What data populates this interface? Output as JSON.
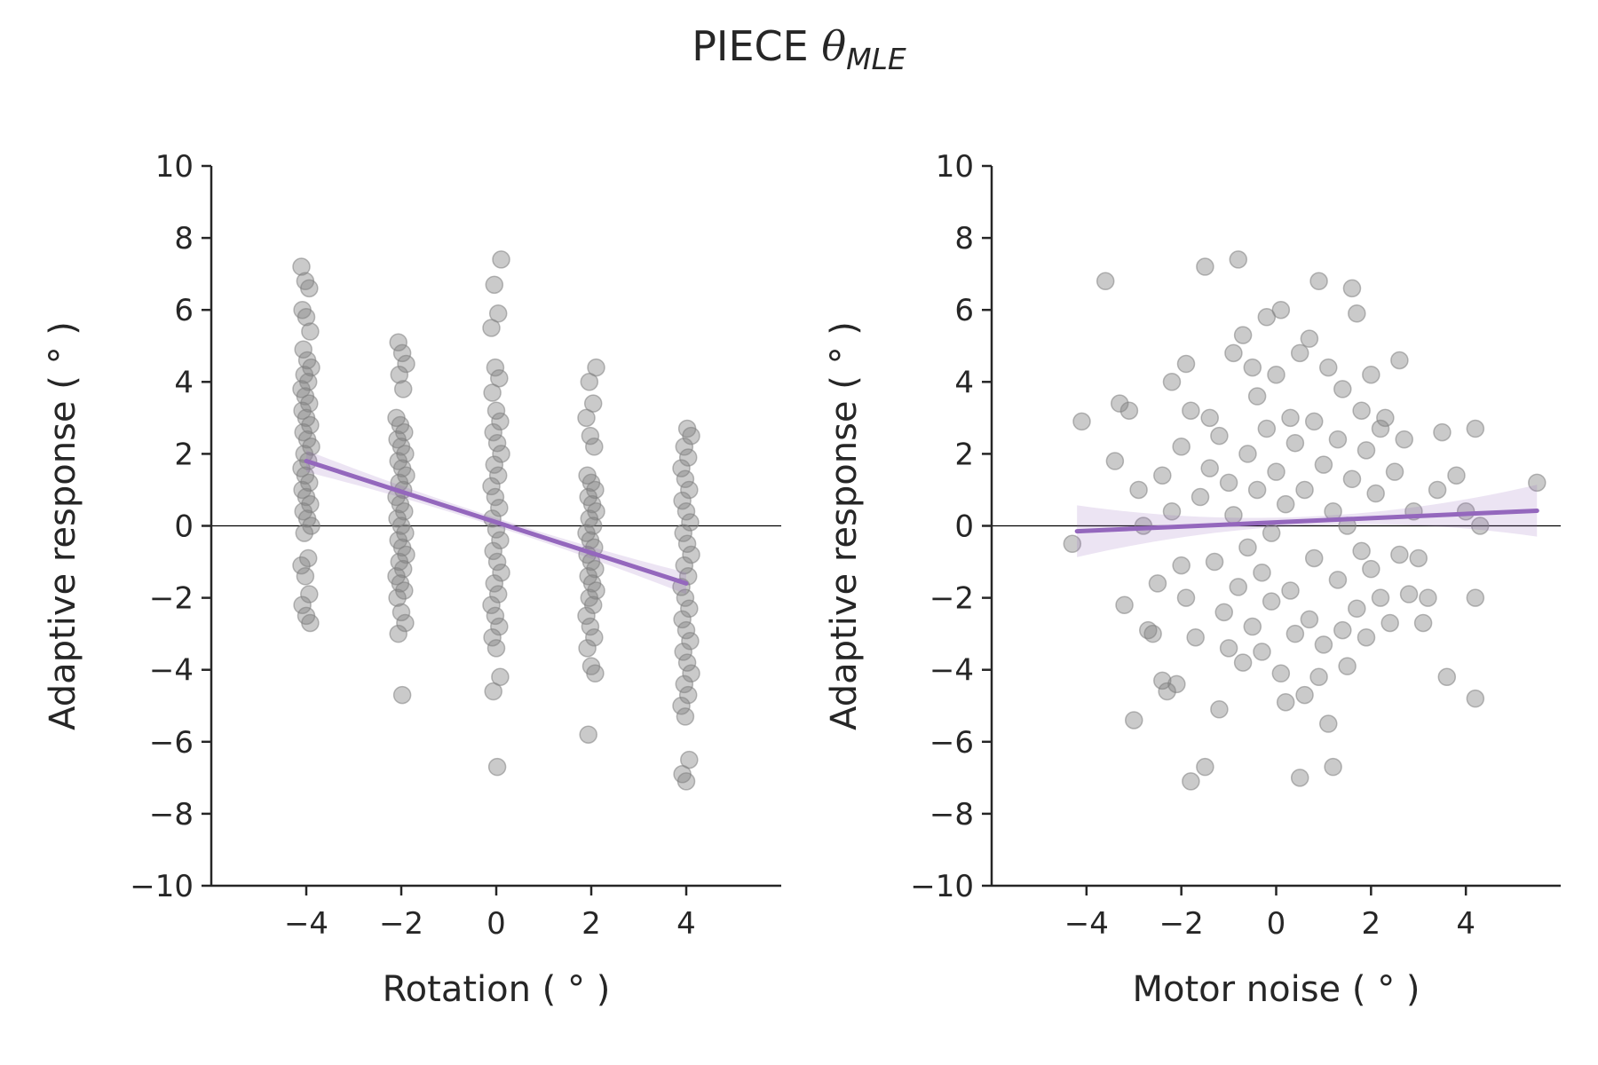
{
  "figure": {
    "title_text": "PIECE ",
    "title_symbol": "θ",
    "title_subscript": "MLE"
  },
  "colors": {
    "points": "#808080",
    "fit": "#9467bd",
    "axis": "#262626"
  },
  "chart_data": [
    {
      "type": "scatter",
      "xlabel": "Rotation ( ° )",
      "ylabel": "Adaptive response ( ° )",
      "xlim": [
        -6,
        6
      ],
      "ylim": [
        -10,
        10
      ],
      "xticks": [
        "−4",
        "−2",
        "0",
        "2",
        "4"
      ],
      "yticks": [
        "10",
        "8",
        "6",
        "4",
        "2",
        "0",
        "−2",
        "−4",
        "−6",
        "−8",
        "−10"
      ],
      "reference_line_y": 0,
      "grid": false,
      "regression": {
        "x": [
          -4,
          4
        ],
        "y": [
          1.8,
          -1.6
        ]
      },
      "series": [
        {
          "x": -4,
          "y": [
            7.2,
            6.8,
            6.6,
            6.0,
            5.8,
            5.4,
            4.9,
            4.6,
            4.4,
            4.2,
            4.0,
            3.8,
            3.6,
            3.4,
            3.2,
            3.0,
            2.8,
            2.6,
            2.4,
            2.2,
            2.0,
            1.8,
            1.6,
            1.4,
            1.2,
            1.0,
            0.8,
            0.6,
            0.4,
            0.2,
            0.0,
            -0.2,
            -0.9,
            -1.1,
            -1.4,
            -1.9,
            -2.2,
            -2.5,
            -2.7
          ]
        },
        {
          "x": -2,
          "y": [
            5.1,
            4.8,
            4.5,
            4.2,
            3.8,
            3.0,
            2.8,
            2.6,
            2.4,
            2.2,
            2.0,
            1.8,
            1.6,
            1.4,
            1.2,
            1.0,
            0.8,
            0.6,
            0.4,
            0.2,
            0.0,
            -0.2,
            -0.4,
            -0.6,
            -0.8,
            -1.0,
            -1.2,
            -1.4,
            -1.6,
            -1.8,
            -2.0,
            -2.4,
            -2.7,
            -3.0,
            -4.7
          ]
        },
        {
          "x": 0,
          "y": [
            7.4,
            6.7,
            5.9,
            5.5,
            4.4,
            4.1,
            3.7,
            3.2,
            2.9,
            2.6,
            2.3,
            2.0,
            1.7,
            1.4,
            1.1,
            0.8,
            0.5,
            0.2,
            -0.1,
            -0.4,
            -0.7,
            -1.0,
            -1.3,
            -1.6,
            -1.9,
            -2.2,
            -2.5,
            -2.8,
            -3.1,
            -3.4,
            -4.2,
            -4.6,
            -6.7
          ]
        },
        {
          "x": 2,
          "y": [
            4.4,
            4.0,
            3.4,
            3.0,
            2.5,
            2.2,
            1.4,
            1.2,
            1.0,
            0.8,
            0.6,
            0.4,
            0.2,
            0.0,
            -0.2,
            -0.4,
            -0.6,
            -0.8,
            -1.0,
            -1.2,
            -1.4,
            -1.6,
            -1.8,
            -2.0,
            -2.2,
            -2.5,
            -2.8,
            -3.1,
            -3.4,
            -3.9,
            -4.1,
            -5.8
          ]
        },
        {
          "x": 4,
          "y": [
            2.7,
            2.5,
            2.2,
            1.9,
            1.6,
            1.3,
            1.0,
            0.7,
            0.4,
            0.1,
            -0.2,
            -0.5,
            -0.8,
            -1.1,
            -1.4,
            -1.7,
            -2.0,
            -2.3,
            -2.6,
            -2.9,
            -3.2,
            -3.5,
            -3.8,
            -4.1,
            -4.4,
            -4.7,
            -5.0,
            -5.3,
            -6.5,
            -6.9,
            -7.1
          ]
        }
      ]
    },
    {
      "type": "scatter",
      "xlabel": "Motor noise ( ° )",
      "ylabel": "Adaptive response ( ° )",
      "xlim": [
        -6,
        6
      ],
      "ylim": [
        -10,
        10
      ],
      "xticks": [
        "−4",
        "−2",
        "0",
        "2",
        "4"
      ],
      "yticks": [
        "10",
        "8",
        "6",
        "4",
        "2",
        "0",
        "−2",
        "−4",
        "−6",
        "−8",
        "−10"
      ],
      "reference_line_y": 0,
      "grid": false,
      "regression": {
        "x": [
          -4.2,
          5.5
        ],
        "y": [
          -0.15,
          0.42
        ]
      },
      "points": [
        [
          -4.3,
          -0.5
        ],
        [
          -4.1,
          2.9
        ],
        [
          -3.6,
          6.8
        ],
        [
          -3.4,
          1.8
        ],
        [
          -3.3,
          3.4
        ],
        [
          -3.2,
          -2.2
        ],
        [
          -3.1,
          3.2
        ],
        [
          -3.0,
          -5.4
        ],
        [
          -2.9,
          1.0
        ],
        [
          -2.8,
          0.0
        ],
        [
          -2.7,
          -2.9
        ],
        [
          -2.6,
          -3.0
        ],
        [
          -2.5,
          -1.6
        ],
        [
          -2.4,
          -4.3
        ],
        [
          -2.4,
          1.4
        ],
        [
          -2.3,
          -4.6
        ],
        [
          -2.2,
          4.0
        ],
        [
          -2.2,
          0.4
        ],
        [
          -2.1,
          -4.4
        ],
        [
          -2.0,
          2.2
        ],
        [
          -2.0,
          -1.1
        ],
        [
          -1.9,
          4.5
        ],
        [
          -1.9,
          -2.0
        ],
        [
          -1.8,
          -7.1
        ],
        [
          -1.8,
          3.2
        ],
        [
          -1.7,
          -3.1
        ],
        [
          -1.6,
          0.8
        ],
        [
          -1.5,
          7.2
        ],
        [
          -1.5,
          -6.7
        ],
        [
          -1.4,
          3.0
        ],
        [
          -1.4,
          1.6
        ],
        [
          -1.3,
          -1.0
        ],
        [
          -1.2,
          -5.1
        ],
        [
          -1.2,
          2.5
        ],
        [
          -1.1,
          -2.4
        ],
        [
          -1.0,
          1.2
        ],
        [
          -1.0,
          -3.4
        ],
        [
          -0.9,
          4.8
        ],
        [
          -0.9,
          0.3
        ],
        [
          -0.8,
          7.4
        ],
        [
          -0.8,
          -1.7
        ],
        [
          -0.7,
          5.3
        ],
        [
          -0.7,
          -3.8
        ],
        [
          -0.6,
          2.0
        ],
        [
          -0.6,
          -0.6
        ],
        [
          -0.5,
          4.4
        ],
        [
          -0.5,
          -2.8
        ],
        [
          -0.4,
          3.6
        ],
        [
          -0.4,
          1.0
        ],
        [
          -0.3,
          -1.3
        ],
        [
          -0.3,
          -3.5
        ],
        [
          -0.2,
          5.8
        ],
        [
          -0.2,
          2.7
        ],
        [
          -0.1,
          -0.2
        ],
        [
          -0.1,
          -2.1
        ],
        [
          0.0,
          4.2
        ],
        [
          0.0,
          1.5
        ],
        [
          0.1,
          -4.1
        ],
        [
          0.1,
          6.0
        ],
        [
          0.2,
          -4.9
        ],
        [
          0.2,
          0.6
        ],
        [
          0.3,
          3.0
        ],
        [
          0.3,
          -1.8
        ],
        [
          0.4,
          2.3
        ],
        [
          0.4,
          -3.0
        ],
        [
          0.5,
          4.8
        ],
        [
          0.5,
          -7.0
        ],
        [
          0.6,
          -4.7
        ],
        [
          0.6,
          1.0
        ],
        [
          0.7,
          5.2
        ],
        [
          0.7,
          -2.6
        ],
        [
          0.8,
          2.9
        ],
        [
          0.8,
          -0.9
        ],
        [
          0.9,
          6.8
        ],
        [
          0.9,
          -4.2
        ],
        [
          1.0,
          1.7
        ],
        [
          1.0,
          -3.3
        ],
        [
          1.1,
          4.4
        ],
        [
          1.1,
          -5.5
        ],
        [
          1.2,
          0.4
        ],
        [
          1.2,
          -6.7
        ],
        [
          1.3,
          2.4
        ],
        [
          1.3,
          -1.5
        ],
        [
          1.4,
          3.8
        ],
        [
          1.4,
          -2.9
        ],
        [
          1.5,
          0.0
        ],
        [
          1.5,
          -3.9
        ],
        [
          1.6,
          6.6
        ],
        [
          1.6,
          1.3
        ],
        [
          1.7,
          5.9
        ],
        [
          1.7,
          -2.3
        ],
        [
          1.8,
          3.2
        ],
        [
          1.8,
          -0.7
        ],
        [
          1.9,
          2.1
        ],
        [
          1.9,
          -3.1
        ],
        [
          2.0,
          4.2
        ],
        [
          2.0,
          -1.2
        ],
        [
          2.1,
          0.9
        ],
        [
          2.2,
          2.7
        ],
        [
          2.2,
          -2.0
        ],
        [
          2.3,
          3.0
        ],
        [
          2.4,
          -2.7
        ],
        [
          2.5,
          1.5
        ],
        [
          2.6,
          4.6
        ],
        [
          2.6,
          -0.8
        ],
        [
          2.7,
          2.4
        ],
        [
          2.8,
          -1.9
        ],
        [
          2.9,
          0.4
        ],
        [
          3.0,
          -0.9
        ],
        [
          3.1,
          -2.7
        ],
        [
          3.2,
          -2.0
        ],
        [
          3.4,
          1.0
        ],
        [
          3.5,
          2.6
        ],
        [
          3.6,
          -4.2
        ],
        [
          3.8,
          1.4
        ],
        [
          4.0,
          0.4
        ],
        [
          4.2,
          2.7
        ],
        [
          4.2,
          -2.0
        ],
        [
          4.2,
          -4.8
        ],
        [
          4.3,
          0.0
        ],
        [
          5.5,
          1.2
        ]
      ]
    }
  ]
}
